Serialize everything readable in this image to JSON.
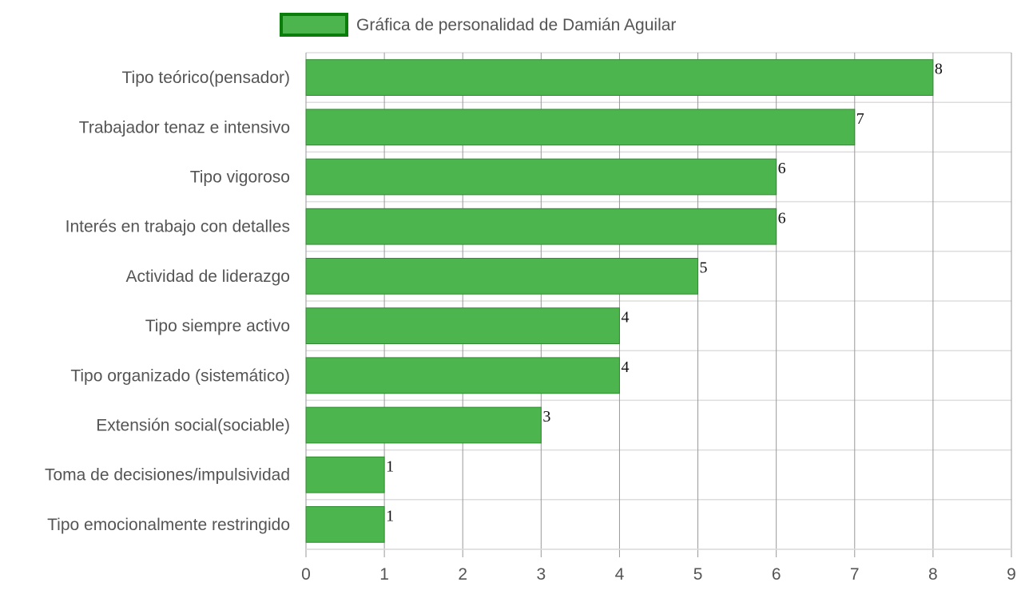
{
  "chart_data": {
    "type": "bar",
    "orientation": "horizontal",
    "categories": [
      "Tipo teórico(pensador)",
      "Trabajador tenaz e intensivo",
      "Tipo vigoroso",
      "Interés en trabajo con detalles",
      "Actividad de liderazgo",
      "Tipo siempre activo",
      "Tipo organizado (sistemático)",
      "Extensión social(sociable)",
      "Toma de decisiones/impulsividad",
      "Tipo emocionalmente restringido"
    ],
    "series": [
      {
        "name": "Gráfica de personalidad de Damián Aguilar",
        "values": [
          8,
          7,
          6,
          6,
          5,
          4,
          4,
          3,
          1,
          1
        ]
      }
    ],
    "xlim": [
      0,
      9
    ],
    "x_ticks": [
      "0",
      "1",
      "2",
      "3",
      "4",
      "5",
      "6",
      "7",
      "8",
      "9"
    ],
    "grid": true,
    "legend_position": "top",
    "colors": {
      "bar_fill": "#4db54d",
      "bar_border": "#2e8b2e",
      "legend_border": "#0a7d0a",
      "grid": "#999999",
      "grid_light": "#dddddd"
    }
  }
}
